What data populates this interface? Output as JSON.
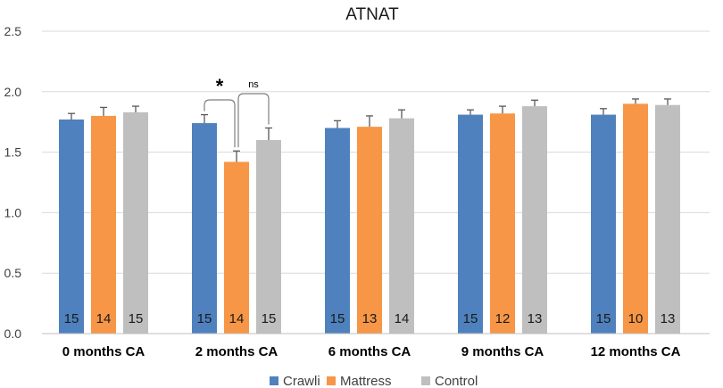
{
  "chart_data": {
    "type": "bar",
    "title": "ATNAT",
    "xlabel": "",
    "ylabel": "",
    "ylim": [
      0,
      2.5
    ],
    "yticks": [
      "0.0",
      "0.5",
      "1.0",
      "1.5",
      "2.0",
      "2.5"
    ],
    "grid": true,
    "legend_position": "bottom",
    "categories": [
      "0 months CA",
      "2 months CA",
      "6 months CA",
      "9 months CA",
      "12 months CA"
    ],
    "series": [
      {
        "name": "Crawli",
        "color": "#4e81bd",
        "values": [
          1.77,
          1.74,
          1.7,
          1.81,
          1.81
        ],
        "errors": [
          0.05,
          0.07,
          0.06,
          0.04,
          0.05
        ],
        "n": [
          "15",
          "15",
          "15",
          "15",
          "15"
        ]
      },
      {
        "name": "Mattress",
        "color": "#f79646",
        "values": [
          1.8,
          1.42,
          1.71,
          1.82,
          1.9
        ],
        "errors": [
          0.07,
          0.09,
          0.09,
          0.06,
          0.04
        ],
        "n": [
          "14",
          "14",
          "13",
          "12",
          "10"
        ]
      },
      {
        "name": "Control",
        "color": "#bfbfbf",
        "values": [
          1.83,
          1.6,
          1.78,
          1.88,
          1.89
        ],
        "errors": [
          0.05,
          0.1,
          0.07,
          0.05,
          0.05
        ],
        "n": [
          "15",
          "15",
          "14",
          "13",
          "13"
        ]
      }
    ],
    "annotations": [
      {
        "text": "*",
        "category": "2 months CA",
        "between": [
          "Crawli",
          "Mattress"
        ]
      },
      {
        "text": "ns",
        "category": "2 months CA",
        "between": [
          "Mattress",
          "Control"
        ]
      }
    ]
  }
}
